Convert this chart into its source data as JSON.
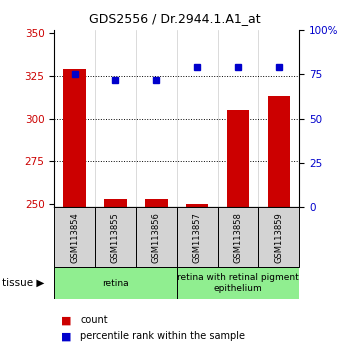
{
  "title": "GDS2556 / Dr.2944.1.A1_at",
  "samples": [
    "GSM113854",
    "GSM113855",
    "GSM113856",
    "GSM113857",
    "GSM113858",
    "GSM113859"
  ],
  "counts": [
    329,
    253,
    253,
    250,
    305,
    313
  ],
  "percentiles": [
    75,
    72,
    72,
    79,
    79,
    79
  ],
  "ylim_left": [
    248,
    352
  ],
  "ylim_right": [
    0,
    100
  ],
  "yticks_left": [
    250,
    275,
    300,
    325,
    350
  ],
  "yticks_right": [
    0,
    25,
    50,
    75,
    100
  ],
  "yticklabels_right": [
    "0",
    "25",
    "50",
    "75",
    "100%"
  ],
  "grid_lines": [
    275,
    300,
    325
  ],
  "tissue_groups": [
    {
      "label": "retina",
      "start": 0,
      "end": 3,
      "color": "#90EE90"
    },
    {
      "label": "retina with retinal pigment\nepithelium",
      "start": 3,
      "end": 6,
      "color": "#90EE90"
    }
  ],
  "bar_color": "#CC0000",
  "dot_color": "#0000CC",
  "bar_width": 0.55,
  "left_axis_color": "#CC0000",
  "right_axis_color": "#0000CC",
  "legend_items": [
    {
      "label": "count",
      "color": "#CC0000"
    },
    {
      "label": "percentile rank within the sample",
      "color": "#0000CC"
    }
  ],
  "tissue_label": "tissue",
  "background_color": "#ffffff",
  "label_box_color": "#d3d3d3"
}
